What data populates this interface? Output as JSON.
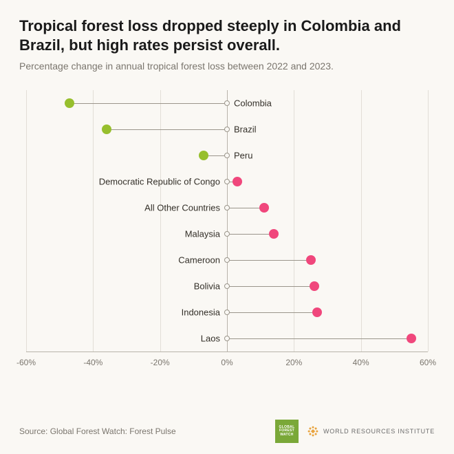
{
  "title": "Tropical forest loss dropped steeply in Colombia and Brazil, but high rates persist overall.",
  "subtitle": "Percentage change in annual tropical forest loss between 2022 and 2023.",
  "source": "Source: Global Forest Watch: Forest Pulse",
  "wri_label": "WORLD RESOURCES INSTITUTE",
  "gfw_line1": "GLOBAL",
  "gfw_line2": "FOREST",
  "gfw_line3": "WATCH",
  "chart": {
    "type": "lollipop",
    "xlim": [
      -60,
      60
    ],
    "xtick_step": 20,
    "xtick_labels": [
      "-60%",
      "-40%",
      "-20%",
      "0%",
      "20%",
      "40%",
      "60%"
    ],
    "grid_color": "#e2ded7",
    "zeroline_color": "#b8b3aa",
    "axis_color": "#b8b3aa",
    "stem_color": "#9a958b",
    "origin_border": "#9a958b",
    "background_color": "#faf8f4",
    "label_fontsize": 13,
    "tick_fontsize": 12,
    "dot_radius": 7,
    "origin_radius": 4,
    "negative_color": "#97bf2d",
    "positive_color": "#f0477c",
    "rows": [
      {
        "label": "Colombia",
        "value": -47
      },
      {
        "label": "Brazil",
        "value": -36
      },
      {
        "label": "Peru",
        "value": -7
      },
      {
        "label": "Democratic Republic of Congo",
        "value": 3
      },
      {
        "label": "All Other Countries",
        "value": 11
      },
      {
        "label": "Malaysia",
        "value": 14
      },
      {
        "label": "Cameroon",
        "value": 25
      },
      {
        "label": "Bolivia",
        "value": 26
      },
      {
        "label": "Indonesia",
        "value": 27
      },
      {
        "label": "Laos",
        "value": 55
      }
    ]
  }
}
